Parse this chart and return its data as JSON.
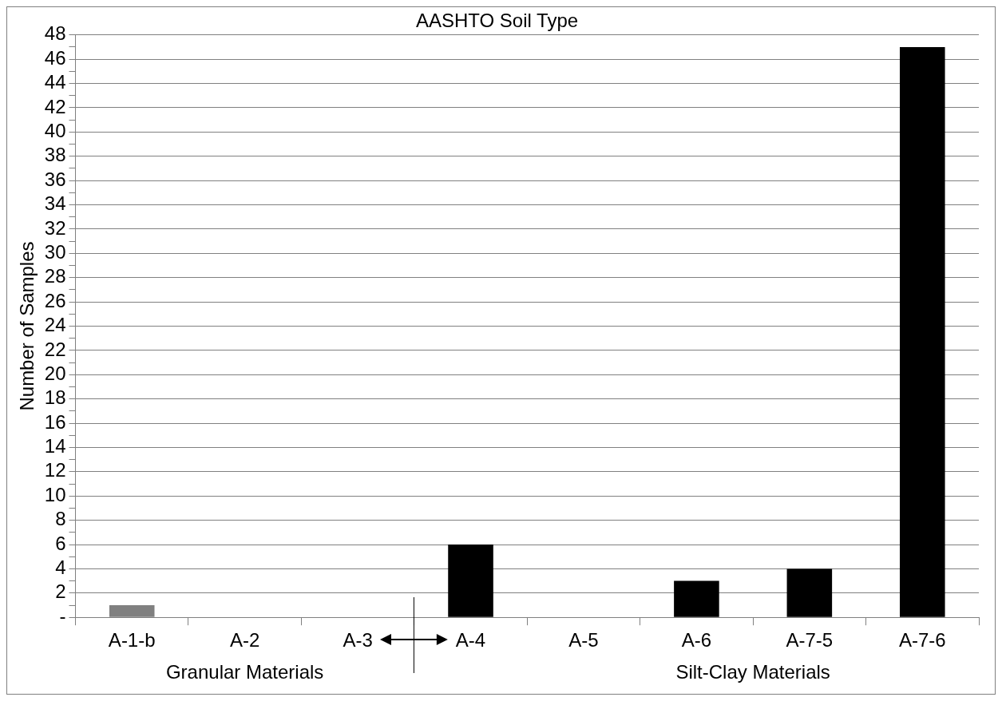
{
  "chart_data": {
    "type": "bar",
    "title": "AASHTO Soil Type",
    "ylabel": "Number of Samples",
    "categories": [
      "A-1-b",
      "A-2",
      "A-3",
      "A-4",
      "A-5",
      "A-6",
      "A-7-5",
      "A-7-6"
    ],
    "values": [
      1,
      0,
      0,
      6,
      0,
      3,
      4,
      47
    ],
    "colors": [
      "#808080",
      "#000000",
      "#000000",
      "#000000",
      "#000000",
      "#000000",
      "#000000",
      "#000000"
    ],
    "ylim": [
      0,
      48
    ],
    "yticks": [
      {
        "value": 0,
        "label": "-"
      },
      {
        "value": 1,
        "label": null
      },
      2,
      {
        "value": 3,
        "label": null
      },
      4,
      {
        "value": 5,
        "label": null
      },
      6,
      {
        "value": 7,
        "label": null
      },
      8,
      {
        "value": 9,
        "label": null
      },
      10,
      {
        "value": 11,
        "label": null
      },
      12,
      {
        "value": 13,
        "label": null
      },
      14,
      {
        "value": 15,
        "label": null
      },
      16,
      {
        "value": 17,
        "label": null
      },
      18,
      {
        "value": 19,
        "label": null
      },
      20,
      {
        "value": 21,
        "label": null
      },
      22,
      {
        "value": 23,
        "label": null
      },
      24,
      {
        "value": 25,
        "label": null
      },
      26,
      {
        "value": 27,
        "label": null
      },
      28,
      {
        "value": 29,
        "label": null
      },
      30,
      {
        "value": 31,
        "label": null
      },
      32,
      {
        "value": 33,
        "label": null
      },
      34,
      {
        "value": 35,
        "label": null
      },
      36,
      {
        "value": 37,
        "label": null
      },
      38,
      {
        "value": 39,
        "label": null
      },
      40,
      {
        "value": 41,
        "label": null
      },
      42,
      {
        "value": 43,
        "label": null
      },
      44,
      {
        "value": 45,
        "label": null
      },
      46,
      {
        "value": 47,
        "label": null
      },
      48
    ],
    "grid": "y",
    "legend": false,
    "annotations": [
      "Granular Materials",
      "Silt-Clay Materials"
    ]
  }
}
